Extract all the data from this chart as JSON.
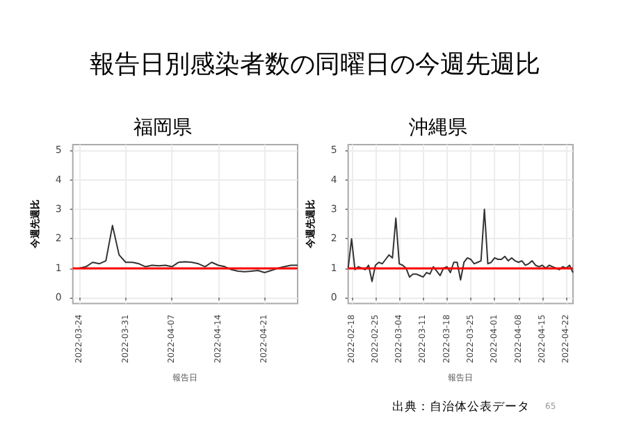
{
  "chart_data": [
    {
      "type": "line",
      "title": "福岡県",
      "xlabel": "報告日",
      "ylabel": "今週先週比",
      "annotations": [
        "報告日別感染者数の同曜日の今週先週比"
      ],
      "x": [
        "2022-03-24",
        "2022-03-25",
        "2022-03-26",
        "2022-03-27",
        "2022-03-28",
        "2022-03-29",
        "2022-03-30",
        "2022-03-31",
        "2022-04-01",
        "2022-04-02",
        "2022-04-03",
        "2022-04-04",
        "2022-04-05",
        "2022-04-06",
        "2022-04-07",
        "2022-04-08",
        "2022-04-09",
        "2022-04-10",
        "2022-04-11",
        "2022-04-12",
        "2022-04-13",
        "2022-04-14",
        "2022-04-15",
        "2022-04-16",
        "2022-04-17",
        "2022-04-18",
        "2022-04-19",
        "2022-04-20",
        "2022-04-21",
        "2022-04-22",
        "2022-04-23",
        "2022-04-24",
        "2022-04-25",
        "2022-04-26"
      ],
      "series": [
        {
          "color": "#333333",
          "values": [
            1.0,
            1.05,
            1.2,
            1.15,
            1.25,
            2.45,
            1.45,
            1.2,
            1.2,
            1.15,
            1.05,
            1.1,
            1.08,
            1.1,
            1.05,
            1.2,
            1.22,
            1.2,
            1.15,
            1.05,
            1.2,
            1.1,
            1.05,
            0.95,
            0.9,
            0.88,
            0.9,
            0.92,
            0.85,
            0.92,
            1.0,
            1.05,
            1.1,
            1.1
          ]
        }
      ],
      "xlim": [
        "2022-03-23",
        "2022-04-26"
      ],
      "xticks": [
        "2022-03-24",
        "2022-03-31",
        "2022-04-07",
        "2022-04-14",
        "2022-04-21"
      ],
      "ylim": [
        -0.2,
        5.2
      ],
      "yticks": [
        0,
        1,
        2,
        3,
        4,
        5
      ],
      "grid": true,
      "marker": "none",
      "line_style": "solid",
      "ref_lines": [
        {
          "axis": "y",
          "value": 1,
          "color": "#ff0000"
        }
      ]
    },
    {
      "type": "line",
      "title": "沖縄県",
      "xlabel": "報告日",
      "ylabel": "今週先週比",
      "annotations": [
        "出典：自治体公表データ",
        "65"
      ],
      "x": [
        "2022-02-17",
        "2022-02-18",
        "2022-02-19",
        "2022-02-20",
        "2022-02-21",
        "2022-02-22",
        "2022-02-23",
        "2022-02-24",
        "2022-02-25",
        "2022-02-26",
        "2022-02-27",
        "2022-02-28",
        "2022-03-01",
        "2022-03-02",
        "2022-03-03",
        "2022-03-04",
        "2022-03-05",
        "2022-03-06",
        "2022-03-07",
        "2022-03-08",
        "2022-03-09",
        "2022-03-10",
        "2022-03-11",
        "2022-03-12",
        "2022-03-13",
        "2022-03-14",
        "2022-03-15",
        "2022-03-16",
        "2022-03-17",
        "2022-03-18",
        "2022-03-19",
        "2022-03-20",
        "2022-03-21",
        "2022-03-22",
        "2022-03-23",
        "2022-03-24",
        "2022-03-25",
        "2022-03-26",
        "2022-03-27",
        "2022-03-28",
        "2022-03-29",
        "2022-03-30",
        "2022-03-31",
        "2022-04-01",
        "2022-04-02",
        "2022-04-03",
        "2022-04-04",
        "2022-04-05",
        "2022-04-06",
        "2022-04-07",
        "2022-04-08",
        "2022-04-09",
        "2022-04-10",
        "2022-04-11",
        "2022-04-12",
        "2022-04-13",
        "2022-04-14",
        "2022-04-15",
        "2022-04-16",
        "2022-04-17",
        "2022-04-18",
        "2022-04-19",
        "2022-04-20",
        "2022-04-21",
        "2022-04-22",
        "2022-04-23",
        "2022-04-24"
      ],
      "series": [
        {
          "color": "#333333",
          "values": [
            1.0,
            2.0,
            0.95,
            1.05,
            1.0,
            0.95,
            1.1,
            0.55,
            1.1,
            1.2,
            1.15,
            1.3,
            1.45,
            1.35,
            2.7,
            1.15,
            1.1,
            1.0,
            0.7,
            0.8,
            0.8,
            0.75,
            0.7,
            0.85,
            0.8,
            1.05,
            0.9,
            0.75,
            1.0,
            1.05,
            0.85,
            1.2,
            1.2,
            0.6,
            1.2,
            1.35,
            1.3,
            1.15,
            1.2,
            1.25,
            3.0,
            1.15,
            1.2,
            1.35,
            1.3,
            1.3,
            1.4,
            1.25,
            1.35,
            1.25,
            1.2,
            1.25,
            1.1,
            1.15,
            1.25,
            1.1,
            1.05,
            1.1,
            1.0,
            1.1,
            1.05,
            1.0,
            0.95,
            1.05,
            1.0,
            1.1,
            0.85
          ]
        }
      ],
      "xlim": [
        "2022-02-17",
        "2022-04-24"
      ],
      "xticks": [
        "2022-02-18",
        "2022-02-25",
        "2022-03-04",
        "2022-03-11",
        "2022-03-18",
        "2022-03-25",
        "2022-04-01",
        "2022-04-08",
        "2022-04-15",
        "2022-04-22"
      ],
      "ylim": [
        -0.2,
        5.2
      ],
      "yticks": [
        0,
        1,
        2,
        3,
        4,
        5
      ],
      "grid": true,
      "marker": "none",
      "line_style": "solid",
      "ref_lines": [
        {
          "axis": "y",
          "value": 1,
          "color": "#ff0000"
        }
      ]
    }
  ]
}
